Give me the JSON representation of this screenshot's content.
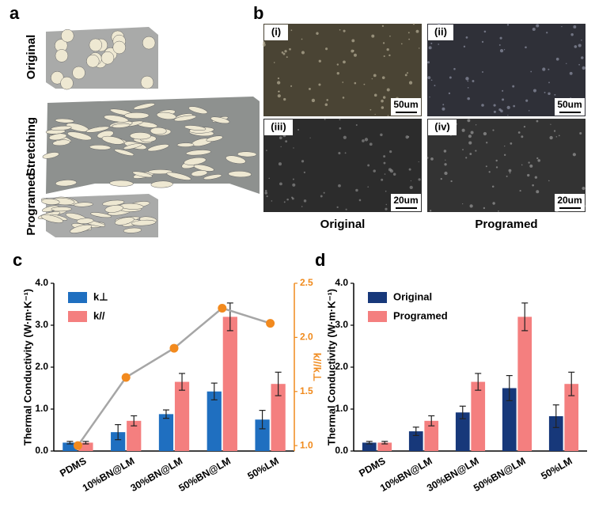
{
  "panel_a": {
    "label": "a",
    "rows": [
      "Original",
      "Stretching",
      "Programed"
    ]
  },
  "panel_b": {
    "label": "b",
    "images": [
      "(i)",
      "(ii)",
      "(iii)",
      "(iv)"
    ],
    "scales": [
      "50um",
      "50um",
      "20um",
      "20um"
    ],
    "captions": [
      "Original",
      "Programed"
    ]
  },
  "chart_data": [
    {
      "type": "bar",
      "label": "c",
      "ylabel": "Thermal Conductivity (W·m·K⁻¹)",
      "y2label": "k///k⊥",
      "categories": [
        "PDMS",
        "10%BN@LM",
        "30%BN@LM",
        "50%BN@LM",
        "50%LM"
      ],
      "ylim": [
        0,
        4
      ],
      "yticks": [
        {
          "value": 0,
          "label": "0.0"
        },
        {
          "value": 1,
          "label": "1.0"
        },
        {
          "value": 2,
          "label": "2.0"
        },
        {
          "value": 3,
          "label": "3.0"
        },
        {
          "value": 4,
          "label": "4.0"
        }
      ],
      "y2lim": [
        0.95,
        2.5
      ],
      "y2ticks": [
        {
          "value": 1,
          "label": "1.0"
        },
        1.5,
        {
          "value": 2,
          "label": "2.0"
        },
        2.5
      ],
      "y2color": "#f08a1c",
      "legend": "upper left",
      "series": [
        {
          "name": "k⊥",
          "color": "#1f6fc0",
          "values": [
            0.2,
            0.45,
            0.88,
            1.42,
            0.75
          ],
          "errors": [
            0.03,
            0.18,
            0.1,
            0.2,
            0.22
          ]
        },
        {
          "name": "k//",
          "color": "#f47f7f",
          "values": [
            0.2,
            0.72,
            1.65,
            3.2,
            1.6
          ],
          "errors": [
            0.03,
            0.12,
            0.2,
            0.33,
            0.28
          ]
        },
        {
          "type": "line",
          "axis": "y2",
          "color": "#a6a6a6",
          "marker_color": "#f28a1e",
          "values": [
            1.0,
            1.63,
            1.9,
            2.27,
            2.13
          ]
        }
      ]
    },
    {
      "type": "bar",
      "label": "d",
      "ylabel": "Thermal Conductivity (W·m·K⁻¹)",
      "categories": [
        "PDMS",
        "10%BN@LM",
        "30%BN@LM",
        "50%BN@LM",
        "50%LM"
      ],
      "ylim": [
        0,
        4
      ],
      "yticks": [
        {
          "value": 0,
          "label": "0.0"
        },
        {
          "value": 1,
          "label": "1.0"
        },
        {
          "value": 2,
          "label": "2.0"
        },
        {
          "value": 3,
          "label": "3.0"
        },
        {
          "value": 4,
          "label": "4.0"
        }
      ],
      "legend": "upper left",
      "series": [
        {
          "name": "Original",
          "color": "#17387a",
          "values": [
            0.2,
            0.47,
            0.92,
            1.5,
            0.83
          ],
          "errors": [
            0.03,
            0.1,
            0.15,
            0.3,
            0.27
          ]
        },
        {
          "name": "Programed",
          "color": "#f47f7f",
          "values": [
            0.2,
            0.72,
            1.65,
            3.2,
            1.6
          ],
          "errors": [
            0.03,
            0.12,
            0.2,
            0.33,
            0.28
          ]
        }
      ]
    }
  ]
}
